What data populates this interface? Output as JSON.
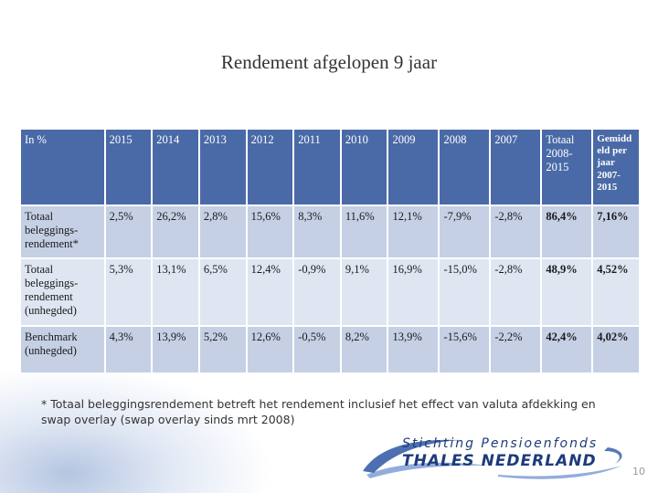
{
  "title": "Rendement afgelopen 9 jaar",
  "table": {
    "headers": [
      "In %",
      "2015",
      "2014",
      "2013",
      "2012",
      "2011",
      "2010",
      "2009",
      "2008",
      "2007",
      "Totaal 2008-2015",
      "Gemidd eld per jaar 2007-2015"
    ],
    "rows": [
      {
        "label": "Totaal beleggings-rendement*",
        "values": [
          "2,5%",
          "26,2%",
          "2,8%",
          "15,6%",
          "8,3%",
          "11,6%",
          "12,1%",
          "-7,9%",
          "-2,8%",
          "86,4%",
          "7,16%"
        ]
      },
      {
        "label": "Totaal beleggings-rendement (unhegded)",
        "values": [
          "5,3%",
          "13,1%",
          "6,5%",
          "12,4%",
          "-0,9%",
          "9,1%",
          "16,9%",
          "-15,0%",
          "-2,8%",
          "48,9%",
          "4,52%"
        ]
      },
      {
        "label": "Benchmark (unhegded)",
        "values": [
          "4,3%",
          "13,9%",
          "5,2%",
          "12,6%",
          "-0,5%",
          "8,2%",
          "13,9%",
          "-15,6%",
          "-2,2%",
          "42,4%",
          "4,02%"
        ]
      }
    ]
  },
  "footnote": "* Totaal beleggingsrendement betreft het rendement inclusief het effect van valuta afdekking en swap overlay (swap overlay sinds mrt 2008)",
  "logo": {
    "line1": "Stichting Pensioenfonds",
    "line2": "THALES NEDERLAND"
  },
  "page_number": "10",
  "colors": {
    "header": "#4a6aa7",
    "row_odd": "#c5d0e5",
    "row_even": "#dfe5f1",
    "logo": "#1d3b7a"
  }
}
